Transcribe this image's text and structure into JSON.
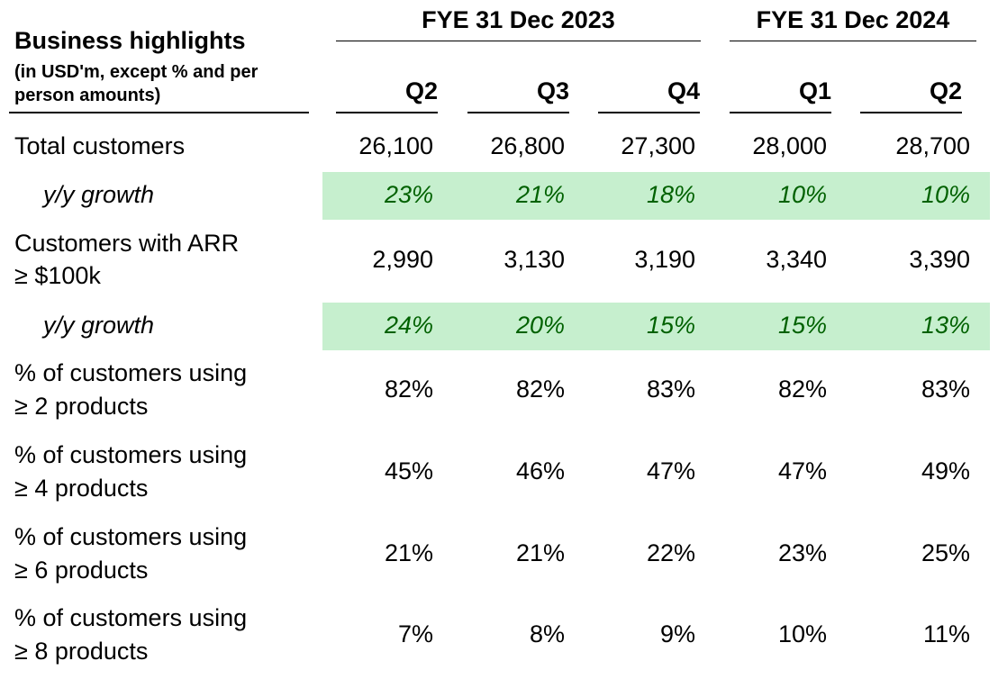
{
  "header": {
    "title": "Business highlights",
    "subtitle": "(in USD'm, except % and per person amounts)",
    "fye_2023": "FYE 31 Dec 2023",
    "fye_2024": "FYE 31 Dec 2024",
    "quarters": [
      "Q2",
      "Q3",
      "Q4",
      "Q1",
      "Q2"
    ]
  },
  "rows": [
    {
      "label": "Total customers",
      "values": [
        "26,100",
        "26,800",
        "27,300",
        "28,000",
        "28,700"
      ]
    },
    {
      "label": "y/y growth",
      "values": [
        "23%",
        "21%",
        "18%",
        "10%",
        "10%"
      ]
    },
    {
      "label_line1": "Customers with ARR",
      "label_line2": "≥ $100k",
      "values": [
        "2,990",
        "3,130",
        "3,190",
        "3,340",
        "3,390"
      ]
    },
    {
      "label": "y/y growth",
      "values": [
        "24%",
        "20%",
        "15%",
        "15%",
        "13%"
      ]
    },
    {
      "label_line1": "% of customers using",
      "label_line2": "≥ 2 products",
      "values": [
        "82%",
        "82%",
        "83%",
        "82%",
        "83%"
      ]
    },
    {
      "label_line1": "% of customers using",
      "label_line2": "≥ 4 products",
      "values": [
        "45%",
        "46%",
        "47%",
        "47%",
        "49%"
      ]
    },
    {
      "label_line1": "% of customers using",
      "label_line2": "≥ 6 products",
      "values": [
        "21%",
        "21%",
        "22%",
        "23%",
        "25%"
      ]
    },
    {
      "label_line1": "% of customers using",
      "label_line2": "≥ 8 products",
      "values": [
        "7%",
        "8%",
        "9%",
        "10%",
        "11%"
      ]
    }
  ],
  "colors": {
    "growth_band": "#c6efce",
    "growth_text": "#006100"
  }
}
